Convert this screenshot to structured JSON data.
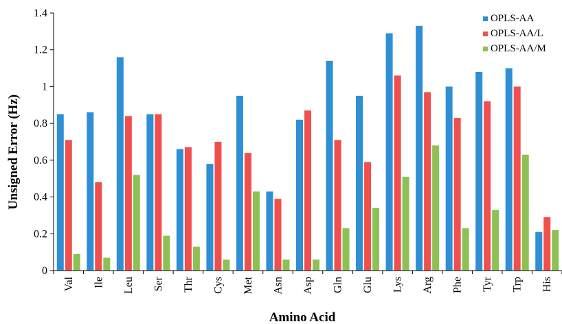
{
  "chart_data": {
    "type": "bar",
    "xlabel": "Amino Acid",
    "ylabel": "Unsigned Error (Hz)",
    "ylim": [
      0,
      1.4
    ],
    "yticks": [
      0,
      0.2,
      0.4,
      0.6,
      0.8,
      1,
      1.2,
      1.4
    ],
    "ytick_labels": [
      "0",
      "0.2",
      "0.4",
      "0.6",
      "0.8",
      "1",
      "1.2",
      "1.4"
    ],
    "grid": false,
    "legend_position": "top-right",
    "categories": [
      "Val",
      "Ile",
      "Leu",
      "Ser",
      "Thr",
      "Cys",
      "Met",
      "Asn",
      "Asp",
      "Gln",
      "Glu",
      "Lys",
      "Arg",
      "Phe",
      "Tyr",
      "Trp",
      "His"
    ],
    "series": [
      {
        "name": "OPLS-AA",
        "color": "#2e8fd4",
        "values": [
          0.85,
          0.86,
          1.16,
          0.85,
          0.66,
          0.58,
          0.95,
          0.43,
          0.82,
          1.14,
          0.95,
          1.29,
          1.33,
          1.0,
          1.08,
          1.1,
          0.21
        ]
      },
      {
        "name": "OPLS-AA/L",
        "color": "#f0504d",
        "values": [
          0.71,
          0.48,
          0.84,
          0.85,
          0.67,
          0.7,
          0.64,
          0.39,
          0.87,
          0.71,
          0.59,
          1.06,
          0.97,
          0.83,
          0.92,
          1.0,
          0.29
        ]
      },
      {
        "name": "OPLS-AA/M",
        "color": "#8dc153",
        "values": [
          0.09,
          0.07,
          0.52,
          0.19,
          0.13,
          0.06,
          0.43,
          0.06,
          0.06,
          0.23,
          0.34,
          0.51,
          0.68,
          0.23,
          0.33,
          0.63,
          0.22
        ]
      }
    ]
  }
}
